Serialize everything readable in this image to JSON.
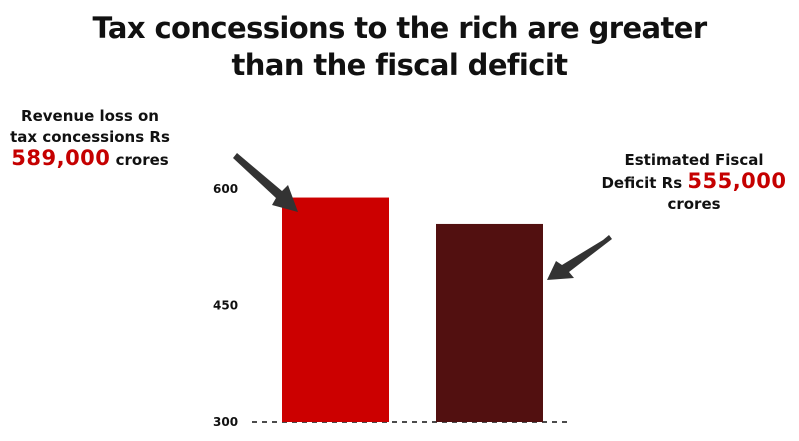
{
  "chart_data": {
    "type": "bar",
    "title": "Tax concessions to the rich are greater than the fiscal deficit",
    "xlabel": "",
    "ylabel": "",
    "categories": [
      "Revenue loss on tax concessions",
      "Estimated Fiscal Deficit"
    ],
    "values": [
      589,
      555
    ],
    "colors": [
      "#cc0000",
      "#521010"
    ],
    "ylim": [
      300,
      600
    ],
    "yticks": [
      "300",
      "450",
      "600"
    ],
    "grid": false,
    "legend": "none"
  },
  "annotations": {
    "left": {
      "line1": "Revenue loss on",
      "line2": "tax concessions Rs",
      "highlight": "589,000",
      "suffix": "crores"
    },
    "right": {
      "line1": "Estimated Fiscal",
      "prefix": "Deficit Rs",
      "highlight": "555,000",
      "line3": "crores"
    }
  },
  "colors": {
    "highlight": "#c50000",
    "arrow": "#333333"
  },
  "icons": [
    "arrow-pointer-icon"
  ]
}
